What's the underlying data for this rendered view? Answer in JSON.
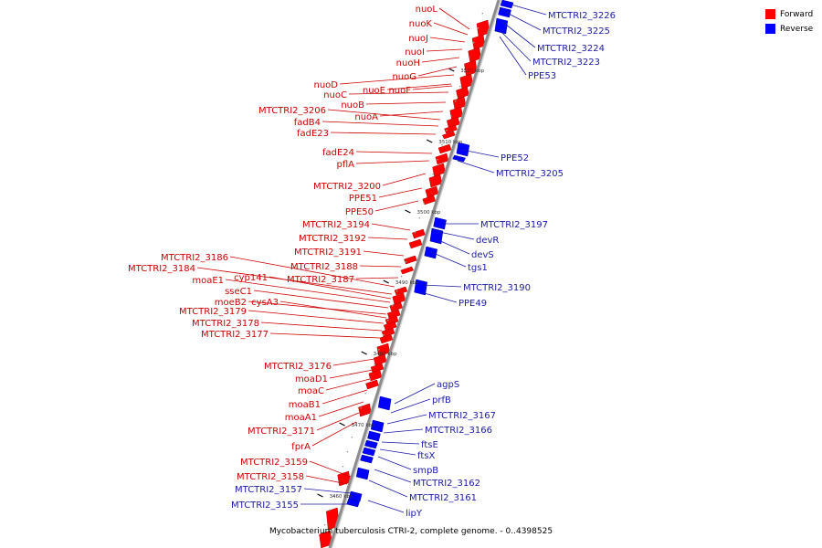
{
  "legend": {
    "forward_label": "Forward",
    "reverse_label": "Reverse",
    "forward_color": "#ff0000",
    "reverse_color": "#0000ff"
  },
  "caption": "Mycobacterium tuberculosis CTRI-2, complete genome. - 0..4398525",
  "colors": {
    "forward_label": "#cc0000",
    "reverse_label": "#1a1aa6",
    "backbone": "#999999",
    "tick": "#000000"
  },
  "ticks": [
    "3460 kbp",
    "3470 kbp",
    "3480 kbp",
    "3490 kbp",
    "3500 kbp",
    "3510 kbp",
    "3520 kbp"
  ],
  "genes": [
    {
      "name": "nuoL",
      "strand": "forward"
    },
    {
      "name": "nuoK",
      "strand": "forward"
    },
    {
      "name": "nuoJ",
      "strand": "forward"
    },
    {
      "name": "nuoI",
      "strand": "forward"
    },
    {
      "name": "nuoH",
      "strand": "forward"
    },
    {
      "name": "nuoG",
      "strand": "forward"
    },
    {
      "name": "nuoD",
      "strand": "forward"
    },
    {
      "name": "nuoE",
      "strand": "forward"
    },
    {
      "name": "nuoF",
      "strand": "forward"
    },
    {
      "name": "nuoC",
      "strand": "forward"
    },
    {
      "name": "nuoB",
      "strand": "forward"
    },
    {
      "name": "nuoA",
      "strand": "forward"
    },
    {
      "name": "MTCTRI2_3206",
      "strand": "forward"
    },
    {
      "name": "fadB4",
      "strand": "forward"
    },
    {
      "name": "fadE23",
      "strand": "forward"
    },
    {
      "name": "fadE24",
      "strand": "forward"
    },
    {
      "name": "pflA",
      "strand": "forward"
    },
    {
      "name": "MTCTRI2_3200",
      "strand": "forward"
    },
    {
      "name": "PPE51",
      "strand": "forward"
    },
    {
      "name": "PPE50",
      "strand": "forward"
    },
    {
      "name": "MTCTRI2_3194",
      "strand": "forward"
    },
    {
      "name": "MTCTRI2_3192",
      "strand": "forward"
    },
    {
      "name": "MTCTRI2_3191",
      "strand": "forward"
    },
    {
      "name": "MTCTRI2_3188",
      "strand": "forward"
    },
    {
      "name": "MTCTRI2_3187",
      "strand": "forward"
    },
    {
      "name": "MTCTRI2_3186",
      "strand": "forward"
    },
    {
      "name": "MTCTRI2_3184",
      "strand": "forward"
    },
    {
      "name": "cyp141",
      "strand": "forward"
    },
    {
      "name": "moaE1",
      "strand": "forward"
    },
    {
      "name": "sseC1",
      "strand": "forward"
    },
    {
      "name": "moeB2",
      "strand": "forward"
    },
    {
      "name": "cysA3",
      "strand": "forward"
    },
    {
      "name": "MTCTRI2_3179",
      "strand": "forward"
    },
    {
      "name": "MTCTRI2_3178",
      "strand": "forward"
    },
    {
      "name": "MTCTRI2_3177",
      "strand": "forward"
    },
    {
      "name": "MTCTRI2_3176",
      "strand": "forward"
    },
    {
      "name": "moaD1",
      "strand": "forward"
    },
    {
      "name": "moaC",
      "strand": "forward"
    },
    {
      "name": "moaB1",
      "strand": "forward"
    },
    {
      "name": "moaA1",
      "strand": "forward"
    },
    {
      "name": "MTCTRI2_3171",
      "strand": "forward"
    },
    {
      "name": "fprA",
      "strand": "forward"
    },
    {
      "name": "MTCTRI2_3159",
      "strand": "forward"
    },
    {
      "name": "MTCTRI2_3158",
      "strand": "forward"
    },
    {
      "name": "MTCTRI2_3157",
      "strand": "reverse"
    },
    {
      "name": "MTCTRI2_3155",
      "strand": "reverse"
    },
    {
      "name": "MTCTRI2_3226",
      "strand": "reverse"
    },
    {
      "name": "MTCTRI2_3225",
      "strand": "reverse"
    },
    {
      "name": "MTCTRI2_3224",
      "strand": "reverse"
    },
    {
      "name": "MTCTRI2_3223",
      "strand": "reverse"
    },
    {
      "name": "PPE53",
      "strand": "reverse"
    },
    {
      "name": "PPE52",
      "strand": "reverse"
    },
    {
      "name": "MTCTRI2_3205",
      "strand": "reverse"
    },
    {
      "name": "MTCTRI2_3197",
      "strand": "reverse"
    },
    {
      "name": "devR",
      "strand": "reverse"
    },
    {
      "name": "devS",
      "strand": "reverse"
    },
    {
      "name": "tgs1",
      "strand": "reverse"
    },
    {
      "name": "MTCTRI2_3190",
      "strand": "reverse"
    },
    {
      "name": "PPE49",
      "strand": "reverse"
    },
    {
      "name": "agpS",
      "strand": "reverse"
    },
    {
      "name": "prfB",
      "strand": "reverse"
    },
    {
      "name": "MTCTRI2_3167",
      "strand": "reverse"
    },
    {
      "name": "MTCTRI2_3166",
      "strand": "reverse"
    },
    {
      "name": "ftsE",
      "strand": "reverse"
    },
    {
      "name": "ftsX",
      "strand": "reverse"
    },
    {
      "name": "smpB",
      "strand": "reverse"
    },
    {
      "name": "MTCTRI2_3162",
      "strand": "reverse"
    },
    {
      "name": "MTCTRI2_3161",
      "strand": "reverse"
    },
    {
      "name": "lipY",
      "strand": "reverse"
    }
  ]
}
